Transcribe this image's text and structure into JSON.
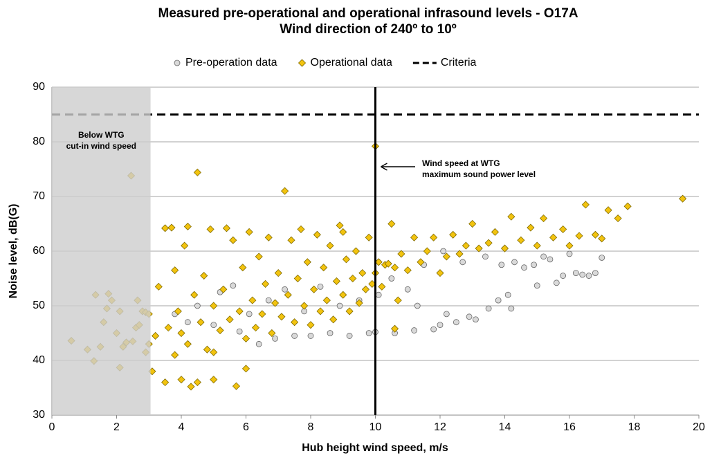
{
  "chart_data": {
    "type": "scatter",
    "title": [
      "Measured pre-operational and operational infrasound levels - O17A",
      "Wind direction of 240º to 10º"
    ],
    "x_label": "Hub height wind speed, m/s",
    "y_label": "Noise level, dB(G)",
    "xlim": [
      0,
      20
    ],
    "xticks": [
      0,
      2,
      4,
      6,
      8,
      10,
      12,
      14,
      16,
      18,
      20
    ],
    "ylim": [
      30,
      90
    ],
    "yticks": [
      30,
      40,
      50,
      60,
      70,
      80,
      90
    ],
    "grid": true,
    "legend": "top",
    "shade_xlim": [
      0,
      3.05
    ],
    "vline": 10,
    "annotations": [
      {
        "lines": [
          "Below WTG",
          "cut-in wind speed"
        ]
      },
      {
        "lines": [
          "Wind speed at WTG",
          "maximum sound power level"
        ]
      }
    ],
    "series": [
      {
        "name": "Pre-operation data",
        "marker": "circle",
        "color": "#d9d9d9",
        "x": [
          3.8,
          4.2,
          4.5,
          5.0,
          5.2,
          5.6,
          5.8,
          6.1,
          6.4,
          6.7,
          6.9,
          7.2,
          7.5,
          7.8,
          8.0,
          8.3,
          8.6,
          8.9,
          9.2,
          9.5,
          9.8,
          10.0,
          10.1,
          10.5,
          10.6,
          11.0,
          11.2,
          11.3,
          11.5,
          11.8,
          12.0,
          12.1,
          12.2,
          12.5,
          12.7,
          12.9,
          13.1,
          13.4,
          13.5,
          13.8,
          13.9,
          14.1,
          14.2,
          14.3,
          14.6,
          14.9,
          15.0,
          15.2,
          15.4,
          15.6,
          15.8,
          16.0,
          16.2,
          16.4,
          16.6,
          16.8,
          17.0
        ],
        "values": [
          48.5,
          47,
          50,
          46.5,
          52.5,
          53.7,
          45.3,
          48.5,
          43,
          51,
          44,
          53,
          44.5,
          49,
          44.5,
          53.5,
          45,
          50,
          44.5,
          51,
          45,
          45.2,
          52,
          55,
          45,
          53,
          45.5,
          50,
          57.5,
          45.7,
          46.5,
          60,
          48.5,
          47,
          58,
          48,
          47.5,
          59,
          49.5,
          51,
          57.5,
          52,
          49.5,
          58,
          57,
          57.5,
          53.7,
          59,
          58.5,
          54.2,
          55.5,
          59.5,
          56,
          55.7,
          55.5,
          56,
          58.8
        ]
      },
      {
        "name": "Operational data",
        "marker": "diamond",
        "color": "#f2c30f",
        "x": [
          0.6,
          1.1,
          1.3,
          1.35,
          1.5,
          1.6,
          1.7,
          1.75,
          1.85,
          2.0,
          2.1,
          2.1,
          2.2,
          2.3,
          2.45,
          2.5,
          2.6,
          2.65,
          2.7,
          2.8,
          2.9,
          2.9,
          3.0,
          3.0,
          3.1,
          3.2,
          3.3,
          3.5,
          3.5,
          3.6,
          3.7,
          3.8,
          3.8,
          3.9,
          4.0,
          4.0,
          4.1,
          4.2,
          4.2,
          4.3,
          4.4,
          4.5,
          4.5,
          4.6,
          4.7,
          4.8,
          4.9,
          5.0,
          5.0,
          5.2,
          5.3,
          5.4,
          5.5,
          5.6,
          5.7,
          5.8,
          5.9,
          6.0,
          6.1,
          6.2,
          6.3,
          6.4,
          6.5,
          6.6,
          6.7,
          6.8,
          6.9,
          7.0,
          7.1,
          7.2,
          7.3,
          7.4,
          7.5,
          7.6,
          7.7,
          7.8,
          7.9,
          8.0,
          8.1,
          8.2,
          8.3,
          8.4,
          8.5,
          8.6,
          8.7,
          8.8,
          8.9,
          9.0,
          9.1,
          9.2,
          9.3,
          9.4,
          9.5,
          9.6,
          9.7,
          9.8,
          9.9,
          10.0,
          10.0,
          10.1,
          10.2,
          10.3,
          10.5,
          10.6,
          10.7,
          10.8,
          11.0,
          11.2,
          11.4,
          11.6,
          11.8,
          12.0,
          12.2,
          12.4,
          12.6,
          12.8,
          13.0,
          13.2,
          13.5,
          13.7,
          14.0,
          14.2,
          14.5,
          14.8,
          15.0,
          15.2,
          15.5,
          15.8,
          16.0,
          16.3,
          16.5,
          16.8,
          17.0,
          17.2,
          17.5,
          17.8,
          19.5,
          10.6,
          10.4,
          9.0,
          6.0,
          5.0
        ],
        "values": [
          43.6,
          42,
          39.9,
          52,
          42.5,
          47,
          49.5,
          52.2,
          51,
          45,
          38.7,
          49,
          42.5,
          43.3,
          73.8,
          43.5,
          46,
          51,
          46.5,
          49,
          48.8,
          41.5,
          43,
          48.5,
          38,
          44.5,
          53.5,
          36,
          64.2,
          46,
          64.3,
          41,
          56.5,
          49,
          36.5,
          45,
          61,
          64.5,
          43,
          35.2,
          52,
          74.4,
          36,
          47,
          55.5,
          42,
          64,
          36.5,
          50,
          45.5,
          53,
          64.2,
          47.5,
          62,
          35.3,
          49,
          57,
          44,
          63.5,
          51,
          46,
          59,
          48.5,
          54,
          62.5,
          45,
          50.5,
          56,
          48,
          71,
          52,
          62,
          47,
          55,
          64,
          50,
          58,
          46.5,
          53,
          63,
          49,
          57,
          51,
          61,
          47.5,
          54.5,
          64.7,
          52,
          58.5,
          49,
          55,
          60,
          50.5,
          56,
          53,
          62.5,
          54,
          79.2,
          56,
          58,
          53.5,
          57.5,
          65,
          57,
          51,
          59.5,
          56.5,
          62.5,
          58,
          60,
          62.5,
          56,
          59,
          63,
          59.5,
          61,
          65,
          60.5,
          61.5,
          63.5,
          60.5,
          66.3,
          62,
          64.3,
          61,
          66,
          62.5,
          64,
          61,
          62.8,
          68.5,
          63,
          62.3,
          67.5,
          66,
          68.2,
          69.6,
          45.8,
          57.7,
          63.5,
          38.5,
          41.5
        ]
      },
      {
        "name": "Criteria",
        "marker": "dashed-line",
        "color": "#000000",
        "x": [
          0,
          20
        ],
        "values": [
          85,
          85
        ]
      }
    ]
  }
}
